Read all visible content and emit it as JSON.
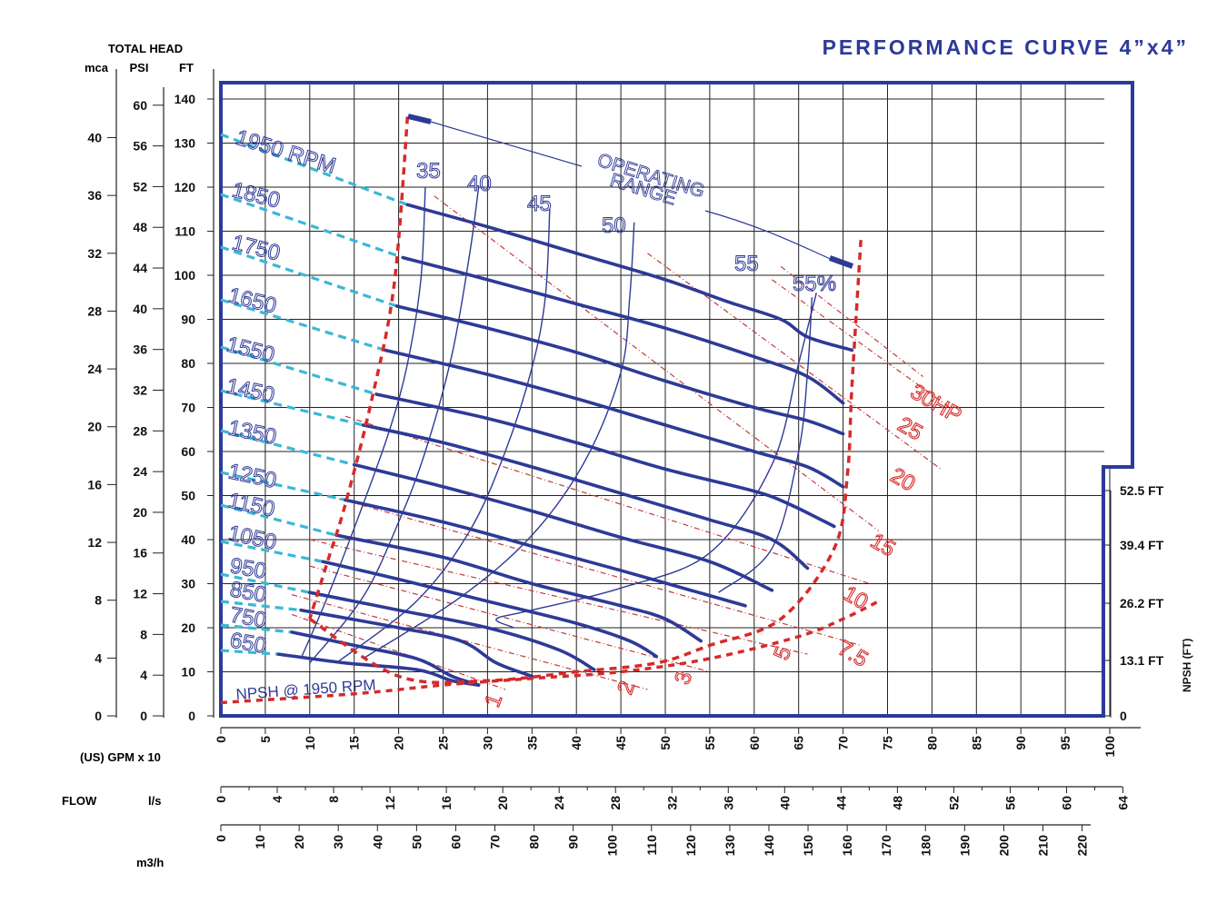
{
  "title": "PERFORMANCE CURVE  4”x4”",
  "colors": {
    "frame": "#2b3a9a",
    "curve": "#2e3a96",
    "grid": "#222222",
    "text": "#111111",
    "boundary": "#d62a2a",
    "power": "#c43a3a",
    "ext": "#3bb7d6",
    "label": "#2e3a96"
  },
  "chart_data": {
    "type": "line",
    "title": "PERFORMANCE CURVE  4”x4”",
    "total_head_label": "TOTAL HEAD",
    "axes": {
      "head_ft": {
        "label": "FT",
        "ticks": [
          0,
          10,
          20,
          30,
          40,
          50,
          60,
          70,
          80,
          90,
          100,
          110,
          120,
          130,
          140
        ],
        "range": [
          0,
          140
        ]
      },
      "head_psi": {
        "label": "PSI",
        "ticks": [
          0,
          4,
          8,
          12,
          16,
          20,
          24,
          28,
          32,
          36,
          40,
          44,
          48,
          52,
          56,
          60
        ]
      },
      "head_mca": {
        "label": "mca",
        "ticks": [
          0,
          4,
          8,
          12,
          16,
          20,
          24,
          28,
          32,
          36,
          40
        ]
      },
      "flow_gpm": {
        "label": "(US) GPM  x 10",
        "ticks": [
          0,
          5,
          10,
          15,
          20,
          25,
          30,
          35,
          40,
          45,
          50,
          55,
          60,
          65,
          70,
          75,
          80,
          85,
          90,
          95,
          100
        ],
        "range": [
          0,
          100
        ]
      },
      "flow_ls": {
        "label": "l/s",
        "ticks": [
          0,
          4,
          8,
          12,
          16,
          20,
          24,
          28,
          32,
          36,
          40,
          44,
          48,
          52,
          56,
          60,
          64
        ]
      },
      "flow_m3h": {
        "label": "m3/h",
        "ticks": [
          0,
          10,
          20,
          30,
          40,
          50,
          60,
          70,
          80,
          90,
          100,
          110,
          120,
          130,
          140,
          150,
          160,
          170,
          180,
          190,
          200,
          210,
          220
        ]
      },
      "flow_group_label": "FLOW",
      "npsh": {
        "label": "NPSH (FT)",
        "ticks": [
          "0",
          "13.1 FT",
          "26.2 FT",
          "39.4 FT",
          "52.5 FT"
        ]
      }
    },
    "speed_curves": [
      {
        "name": "1950 RPM",
        "points": [
          [
            21,
            116
          ],
          [
            30,
            111
          ],
          [
            40,
            105
          ],
          [
            50,
            99
          ],
          [
            57,
            94
          ],
          [
            63,
            90
          ],
          [
            66,
            86
          ],
          [
            71,
            83
          ]
        ]
      },
      {
        "name": "1850",
        "points": [
          [
            20.5,
            104
          ],
          [
            30,
            99
          ],
          [
            40,
            93.5
          ],
          [
            50,
            88
          ],
          [
            60,
            81.5
          ],
          [
            66,
            77
          ],
          [
            70,
            71
          ]
        ]
      },
      {
        "name": "1750",
        "points": [
          [
            19.8,
            93
          ],
          [
            30,
            88
          ],
          [
            40,
            82.5
          ],
          [
            50,
            76
          ],
          [
            60,
            70
          ],
          [
            66,
            67
          ],
          [
            70,
            64
          ]
        ]
      },
      {
        "name": "1650",
        "points": [
          [
            18.5,
            83
          ],
          [
            30,
            77.5
          ],
          [
            40,
            72
          ],
          [
            50,
            66
          ],
          [
            60,
            60
          ],
          [
            66,
            56.5
          ],
          [
            70,
            52
          ]
        ]
      },
      {
        "name": "1550",
        "points": [
          [
            17.5,
            73
          ],
          [
            30,
            67.5
          ],
          [
            40,
            62
          ],
          [
            50,
            56
          ],
          [
            60,
            51
          ],
          [
            64,
            48
          ],
          [
            69,
            43
          ]
        ]
      },
      {
        "name": "1450",
        "points": [
          [
            16,
            66
          ],
          [
            25,
            62
          ],
          [
            35,
            56.5
          ],
          [
            45,
            50.5
          ],
          [
            55,
            44.5
          ],
          [
            62,
            40
          ],
          [
            66,
            33.5
          ]
        ]
      },
      {
        "name": "1350",
        "points": [
          [
            15,
            57
          ],
          [
            25,
            52
          ],
          [
            35,
            46.5
          ],
          [
            45,
            40.5
          ],
          [
            55,
            35
          ],
          [
            62,
            28.5
          ]
        ]
      },
      {
        "name": "1250",
        "points": [
          [
            14,
            49
          ],
          [
            25,
            44
          ],
          [
            35,
            38.5
          ],
          [
            45,
            33
          ],
          [
            52,
            29
          ],
          [
            59,
            25
          ]
        ]
      },
      {
        "name": "1150",
        "points": [
          [
            13,
            41
          ],
          [
            25,
            36
          ],
          [
            35,
            30
          ],
          [
            45,
            25
          ],
          [
            50,
            22
          ],
          [
            54,
            17
          ]
        ]
      },
      {
        "name": "1050",
        "points": [
          [
            11.5,
            35
          ],
          [
            20,
            31
          ],
          [
            30,
            26
          ],
          [
            40,
            21
          ],
          [
            46,
            17
          ],
          [
            49,
            13.5
          ]
        ]
      },
      {
        "name": "950",
        "points": [
          [
            10,
            28
          ],
          [
            20,
            24
          ],
          [
            30,
            20
          ],
          [
            38,
            15
          ],
          [
            42,
            10.5
          ]
        ]
      },
      {
        "name": "850",
        "points": [
          [
            9,
            24
          ],
          [
            20,
            20
          ],
          [
            27,
            17
          ],
          [
            31,
            12
          ],
          [
            35,
            9
          ]
        ]
      },
      {
        "name": "750",
        "points": [
          [
            8,
            19
          ],
          [
            15,
            16
          ],
          [
            22,
            13
          ],
          [
            26,
            9
          ],
          [
            29,
            7
          ]
        ]
      },
      {
        "name": "650",
        "points": [
          [
            6.5,
            14
          ],
          [
            14,
            12
          ],
          [
            22,
            10.5
          ],
          [
            26,
            8
          ],
          [
            29,
            7
          ]
        ]
      }
    ],
    "efficiency_curves": [
      {
        "name": "35",
        "points": [
          [
            9,
            13
          ],
          [
            12,
            27
          ],
          [
            16,
            48
          ],
          [
            19,
            65
          ],
          [
            21,
            80
          ],
          [
            22.5,
            99
          ],
          [
            23,
            120
          ]
        ]
      },
      {
        "name": "40",
        "points": [
          [
            10,
            12
          ],
          [
            16,
            27
          ],
          [
            20,
            44
          ],
          [
            23,
            60
          ],
          [
            26,
            82
          ],
          [
            28,
            105
          ],
          [
            29,
            120
          ]
        ]
      },
      {
        "name": "45",
        "points": [
          [
            13,
            12
          ],
          [
            22,
            26
          ],
          [
            28,
            42
          ],
          [
            32,
            60
          ],
          [
            35,
            79
          ],
          [
            36.5,
            95
          ],
          [
            37,
            115
          ]
        ]
      },
      {
        "name": "50",
        "points": [
          [
            16,
            13
          ],
          [
            27,
            27
          ],
          [
            35,
            41
          ],
          [
            41,
            58
          ],
          [
            45,
            78
          ],
          [
            46,
            95
          ],
          [
            46.5,
            112
          ]
        ]
      },
      {
        "name": "55",
        "points": [
          [
            33,
            20
          ],
          [
            31,
            22
          ],
          [
            35,
            24
          ],
          [
            45,
            29
          ],
          [
            55,
            37
          ],
          [
            62,
            57
          ],
          [
            65,
            80
          ],
          [
            67,
            96
          ]
        ]
      },
      {
        "name": "55%",
        "points": [
          [
            56,
            28
          ],
          [
            62,
            38
          ],
          [
            65,
            60
          ],
          [
            66,
            78
          ],
          [
            66.5,
            95
          ]
        ]
      }
    ],
    "power_lines": [
      {
        "name": "1",
        "points": [
          [
            8,
            23
          ],
          [
            32,
            6
          ]
        ]
      },
      {
        "name": "2",
        "points": [
          [
            8,
            27.5
          ],
          [
            48,
            6
          ]
        ]
      },
      {
        "name": "3",
        "points": [
          [
            10,
            34
          ],
          [
            55,
            10
          ]
        ]
      },
      {
        "name": "5",
        "points": [
          [
            10,
            40
          ],
          [
            66,
            14
          ]
        ]
      },
      {
        "name": "7.5",
        "points": [
          [
            12,
            50
          ],
          [
            72,
            16
          ]
        ]
      },
      {
        "name": "10",
        "points": [
          [
            14,
            68
          ],
          [
            73,
            30
          ]
        ]
      },
      {
        "name": "15",
        "points": [
          [
            24,
            118
          ],
          [
            74,
            42
          ]
        ]
      },
      {
        "name": "20",
        "points": [
          [
            48,
            105
          ],
          [
            81,
            56
          ]
        ]
      },
      {
        "name": "25",
        "points": [
          [
            62,
            99
          ],
          [
            82,
            70
          ]
        ]
      },
      {
        "name": "30HP",
        "points": [
          [
            63,
            102
          ],
          [
            79,
            77
          ]
        ]
      }
    ],
    "power_labels": [
      "1",
      "2",
      "3",
      "5",
      "7.5",
      "10",
      "15",
      "20",
      "25",
      "30HP"
    ],
    "operating_range_left": [
      [
        21,
        136
      ],
      [
        19.5,
        98
      ],
      [
        17,
        72
      ],
      [
        14,
        48
      ],
      [
        12,
        35
      ],
      [
        10,
        22
      ]
    ],
    "operating_range_bottom": [
      [
        10,
        22
      ],
      [
        20,
        9
      ],
      [
        30,
        8
      ],
      [
        40,
        10
      ],
      [
        49,
        12
      ],
      [
        55,
        16
      ],
      [
        63,
        22
      ],
      [
        69,
        38
      ],
      [
        70.5,
        55
      ],
      [
        71,
        75
      ],
      [
        72,
        108
      ]
    ],
    "npsh_curve": [
      [
        0,
        3
      ],
      [
        15,
        5
      ],
      [
        25,
        7
      ],
      [
        35,
        8.5
      ],
      [
        45,
        10
      ],
      [
        55,
        13
      ],
      [
        65,
        18
      ],
      [
        70,
        22
      ],
      [
        74,
        26
      ]
    ],
    "npsh_label": "NPSH @ 1950 RPM",
    "operating_range_label": [
      "OPERATING",
      "RANGE"
    ]
  }
}
